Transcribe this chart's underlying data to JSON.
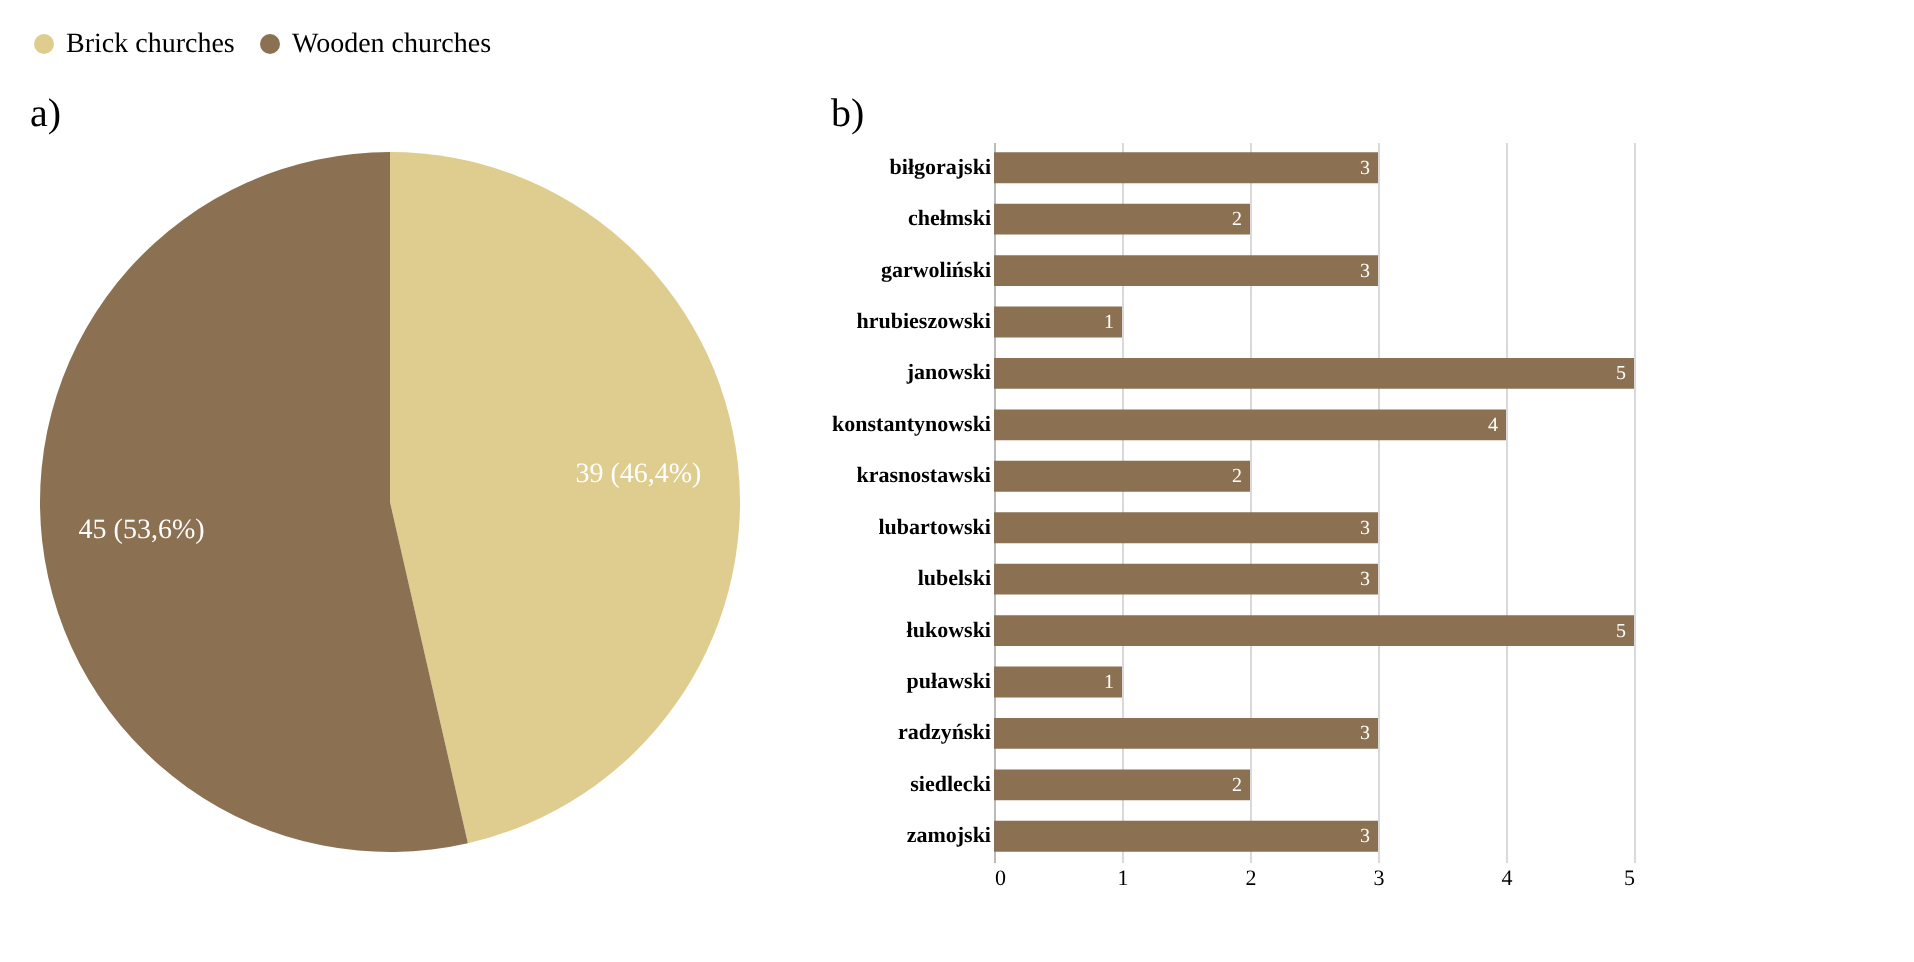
{
  "chart_data": [
    {
      "type": "pie",
      "title": "a)",
      "categories": [
        "Brick churches",
        "Wooden churches"
      ],
      "values": [
        39,
        45
      ],
      "colors": [
        "#dfcd8f",
        "#8b7152"
      ],
      "value_labels": [
        "39 (46,4%)",
        "45 (53,6%)"
      ],
      "legend": "top"
    },
    {
      "type": "bar",
      "title": "b)",
      "orientation": "horizontal",
      "categories": [
        "biłgorajski",
        "chełmski",
        "garwoliński",
        "hrubieszowski",
        "janowski",
        "konstantynowski",
        "krasnostawski",
        "lubartowski",
        "lubelski",
        "łukowski",
        "puławski",
        "radzyński",
        "siedlecki",
        "zamojski"
      ],
      "series": [
        {
          "color": "#8b7152",
          "values": [
            3,
            2,
            3,
            1,
            5,
            4,
            2,
            3,
            3,
            5,
            1,
            3,
            2,
            3
          ]
        }
      ],
      "xlim": [
        0,
        5
      ],
      "xticks": [
        0,
        1,
        2,
        3,
        4,
        5
      ],
      "grid": "x",
      "data_labels": true
    }
  ]
}
